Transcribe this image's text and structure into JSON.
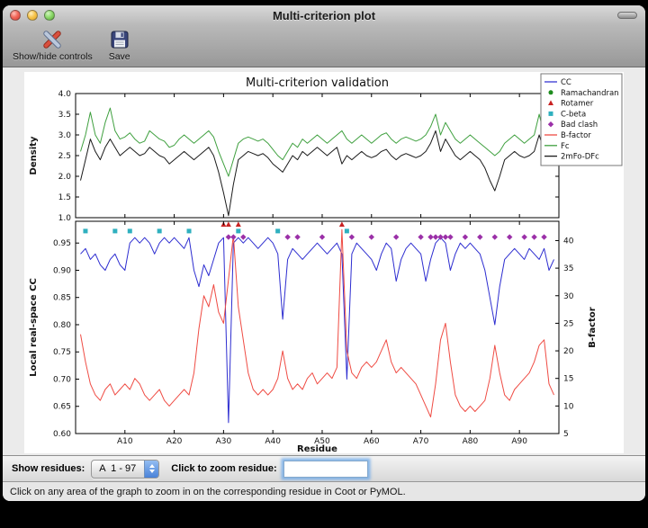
{
  "window": {
    "title": "Multi-criterion plot"
  },
  "toolbar": {
    "show_hide_label": "Show/hide controls",
    "save_label": "Save"
  },
  "controls": {
    "show_residues_label": "Show residues:",
    "residue_range": "A  1 - 97",
    "zoom_label": "Click to zoom residue:",
    "zoom_value": ""
  },
  "status": {
    "message": "Click on any area of the graph to zoom in on the corresponding residue in Coot or PyMOL."
  },
  "chart_data": [
    {
      "type": "line",
      "title": "Multi-criterion validation",
      "ylabel": "Density",
      "ylim": [
        1.0,
        4.0
      ],
      "ytick_labels": [
        "1.0",
        "1.5",
        "2.0",
        "2.5",
        "3.0",
        "3.5",
        "4.0"
      ],
      "x_start": 1,
      "series": [
        {
          "name": "Fc",
          "color": "#3fa03f",
          "values": [
            2.6,
            3.0,
            3.55,
            3.0,
            2.8,
            3.3,
            3.65,
            3.1,
            2.9,
            2.95,
            3.05,
            2.9,
            2.8,
            2.85,
            3.1,
            3.0,
            2.9,
            2.85,
            2.7,
            2.75,
            2.9,
            3.0,
            2.9,
            2.8,
            2.9,
            3.0,
            3.1,
            2.95,
            2.6,
            2.3,
            2.0,
            2.4,
            2.8,
            2.9,
            2.95,
            2.9,
            2.85,
            2.9,
            2.8,
            2.65,
            2.5,
            2.4,
            2.6,
            2.8,
            2.7,
            2.9,
            2.8,
            2.9,
            3.0,
            2.9,
            2.8,
            2.9,
            3.0,
            3.1,
            2.9,
            2.8,
            2.9,
            3.0,
            2.9,
            2.8,
            2.9,
            3.0,
            3.05,
            2.9,
            2.8,
            2.9,
            2.95,
            2.9,
            2.85,
            2.9,
            3.0,
            3.2,
            3.5,
            3.0,
            3.3,
            3.1,
            2.9,
            2.8,
            2.9,
            3.0,
            2.9,
            2.8,
            2.7,
            2.6,
            2.5,
            2.6,
            2.8,
            2.9,
            3.0,
            2.9,
            2.8,
            2.9,
            3.0,
            3.5,
            3.0,
            2.9,
            3.0
          ]
        },
        {
          "name": "2mFo-DFc",
          "color": "#1a1a1a",
          "values": [
            1.9,
            2.4,
            2.9,
            2.6,
            2.4,
            2.7,
            2.9,
            2.7,
            2.5,
            2.6,
            2.7,
            2.6,
            2.5,
            2.55,
            2.7,
            2.6,
            2.5,
            2.45,
            2.3,
            2.4,
            2.5,
            2.6,
            2.5,
            2.4,
            2.5,
            2.6,
            2.7,
            2.5,
            2.1,
            1.6,
            1.05,
            1.8,
            2.4,
            2.5,
            2.6,
            2.55,
            2.5,
            2.55,
            2.45,
            2.3,
            2.2,
            2.1,
            2.3,
            2.5,
            2.4,
            2.6,
            2.5,
            2.6,
            2.7,
            2.6,
            2.5,
            2.6,
            2.7,
            2.3,
            2.5,
            2.4,
            2.5,
            2.6,
            2.5,
            2.45,
            2.5,
            2.6,
            2.65,
            2.5,
            2.4,
            2.5,
            2.55,
            2.5,
            2.45,
            2.5,
            2.6,
            2.8,
            3.1,
            2.6,
            2.9,
            2.7,
            2.5,
            2.4,
            2.5,
            2.6,
            2.5,
            2.4,
            2.2,
            1.9,
            1.65,
            2.0,
            2.4,
            2.5,
            2.6,
            2.5,
            2.45,
            2.5,
            2.6,
            3.0,
            2.6,
            2.5,
            2.9
          ]
        }
      ],
      "legend": {
        "position": "upper right",
        "entries": [
          {
            "label": "CC",
            "shape": "line",
            "color": "#2d2dd0"
          },
          {
            "label": "Ramachandran",
            "shape": "circle",
            "color": "#1e8c1e"
          },
          {
            "label": "Rotamer",
            "shape": "triangle",
            "color": "#c92222"
          },
          {
            "label": "C-beta",
            "shape": "square",
            "color": "#2fb0bf"
          },
          {
            "label": "Bad clash",
            "shape": "diamond",
            "color": "#9b30a8"
          },
          {
            "label": "B-factor",
            "shape": "line",
            "color": "#ef4b43"
          },
          {
            "label": "Fc",
            "shape": "line",
            "color": "#3fa03f"
          },
          {
            "label": "2mFo-DFc",
            "shape": "line",
            "color": "#1a1a1a"
          }
        ]
      }
    },
    {
      "type": "line+scatter",
      "xlabel": "Residue",
      "xlim": [
        0,
        98
      ],
      "x_start": 1,
      "xticks": [
        10,
        20,
        30,
        40,
        50,
        60,
        70,
        80,
        90
      ],
      "xtick_labels": [
        "A10",
        "A20",
        "A30",
        "A40",
        "A50",
        "A60",
        "A70",
        "A80",
        "A90"
      ],
      "left": {
        "label": "Local real-space CC",
        "lim": [
          0.6,
          0.99
        ],
        "tick_labels": [
          "0.60",
          "0.65",
          "0.70",
          "0.75",
          "0.80",
          "0.85",
          "0.90",
          "0.95"
        ]
      },
      "right": {
        "label": "B-factor",
        "lim": [
          5,
          43.5
        ],
        "tick_labels": [
          "5",
          "10",
          "15",
          "20",
          "25",
          "30",
          "35",
          "40"
        ]
      },
      "series": [
        {
          "name": "CC",
          "axis": "left",
          "color": "#2d2dd0",
          "values": [
            0.93,
            0.94,
            0.92,
            0.93,
            0.91,
            0.9,
            0.92,
            0.93,
            0.91,
            0.9,
            0.95,
            0.96,
            0.95,
            0.96,
            0.95,
            0.93,
            0.95,
            0.96,
            0.95,
            0.96,
            0.95,
            0.94,
            0.96,
            0.9,
            0.87,
            0.91,
            0.89,
            0.92,
            0.95,
            0.96,
            0.62,
            0.95,
            0.96,
            0.95,
            0.96,
            0.95,
            0.94,
            0.95,
            0.96,
            0.95,
            0.93,
            0.81,
            0.92,
            0.94,
            0.93,
            0.92,
            0.93,
            0.94,
            0.95,
            0.94,
            0.93,
            0.94,
            0.95,
            0.93,
            0.7,
            0.93,
            0.95,
            0.94,
            0.93,
            0.92,
            0.9,
            0.93,
            0.95,
            0.94,
            0.88,
            0.92,
            0.94,
            0.95,
            0.94,
            0.93,
            0.88,
            0.92,
            0.95,
            0.96,
            0.95,
            0.9,
            0.93,
            0.95,
            0.94,
            0.95,
            0.94,
            0.93,
            0.9,
            0.85,
            0.8,
            0.87,
            0.92,
            0.93,
            0.94,
            0.93,
            0.92,
            0.94,
            0.93,
            0.92,
            0.94,
            0.9,
            0.92
          ]
        },
        {
          "name": "B-factor",
          "axis": "right",
          "color": "#ef4b43",
          "values": [
            23,
            18,
            14,
            12,
            11,
            13,
            14,
            12,
            13,
            14,
            13,
            15,
            14,
            12,
            11,
            12,
            13,
            11,
            10,
            11,
            12,
            13,
            12,
            16,
            24,
            30,
            28,
            32,
            27,
            25,
            33,
            41,
            28,
            22,
            16,
            13,
            12,
            13,
            12,
            13,
            15,
            20,
            15,
            13,
            14,
            13,
            15,
            16,
            14,
            15,
            16,
            15,
            17,
            42,
            20,
            16,
            15,
            17,
            18,
            17,
            18,
            20,
            22,
            18,
            16,
            17,
            16,
            15,
            14,
            12,
            10,
            8,
            14,
            22,
            25,
            18,
            12,
            10,
            9,
            10,
            9,
            10,
            11,
            15,
            21,
            16,
            12,
            11,
            13,
            14,
            15,
            16,
            18,
            21,
            22,
            14,
            12
          ]
        }
      ],
      "markers": [
        {
          "name": "Ramachandran",
          "shape": "circle",
          "color": "#1e8c1e",
          "y": 0.975,
          "residues": []
        },
        {
          "name": "Rotamer",
          "shape": "triangle",
          "color": "#c92222",
          "y": 0.984,
          "residues": [
            30,
            31,
            33,
            54
          ]
        },
        {
          "name": "C-beta",
          "shape": "square",
          "color": "#2fb0bf",
          "y": 0.972,
          "residues": [
            2,
            8,
            11,
            17,
            23,
            33,
            41,
            55
          ]
        },
        {
          "name": "Bad clash",
          "shape": "diamond",
          "color": "#9b30a8",
          "y": 0.961,
          "residues": [
            31,
            32,
            34,
            43,
            45,
            50,
            56,
            60,
            65,
            70,
            72,
            73,
            74,
            75,
            76,
            79,
            82,
            85,
            88,
            91,
            93,
            95
          ]
        }
      ]
    }
  ]
}
